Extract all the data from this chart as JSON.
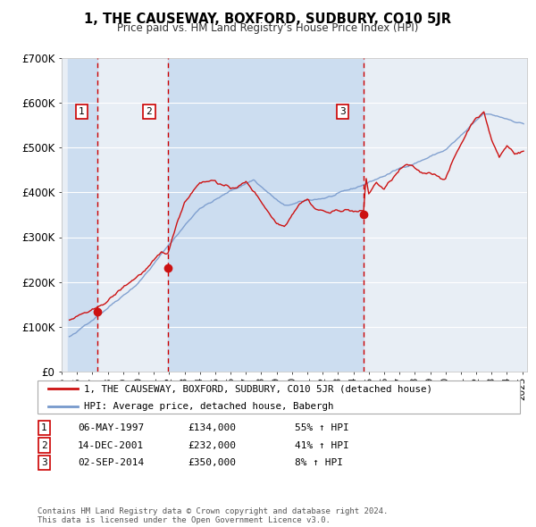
{
  "title": "1, THE CAUSEWAY, BOXFORD, SUDBURY, CO10 5JR",
  "subtitle": "Price paid vs. HM Land Registry’s House Price Index (HPI)",
  "legend_label_red": "1, THE CAUSEWAY, BOXFORD, SUDBURY, CO10 5JR (detached house)",
  "legend_label_blue": "HPI: Average price, detached house, Babergh",
  "transactions": [
    {
      "num": 1,
      "date": "06-MAY-1997",
      "price": 134000,
      "pct": "55%",
      "year": 1997.35
    },
    {
      "num": 2,
      "date": "14-DEC-2001",
      "price": 232000,
      "pct": "41%",
      "year": 2001.95
    },
    {
      "num": 3,
      "date": "02-SEP-2014",
      "price": 350000,
      "pct": "8%",
      "year": 2014.67
    }
  ],
  "ylim": [
    0,
    700000
  ],
  "xlim_start": 1995.4,
  "xlim_end": 2025.3,
  "yticks": [
    0,
    100000,
    200000,
    300000,
    400000,
    500000,
    600000,
    700000
  ],
  "ytick_labels": [
    "£0",
    "£100K",
    "£200K",
    "£300K",
    "£400K",
    "£500K",
    "£600K",
    "£700K"
  ],
  "xticks": [
    1995,
    1996,
    1997,
    1998,
    1999,
    2000,
    2001,
    2002,
    2003,
    2004,
    2005,
    2006,
    2007,
    2008,
    2009,
    2010,
    2011,
    2012,
    2013,
    2014,
    2015,
    2016,
    2017,
    2018,
    2019,
    2020,
    2021,
    2022,
    2023,
    2024,
    2025
  ],
  "background_color": "#ffffff",
  "plot_bg_color": "#e8eef5",
  "shade_color": "#ccddf0",
  "grid_color": "#ffffff",
  "red_color": "#cc1111",
  "blue_color": "#7799cc",
  "vline_color": "#cc0000",
  "footer_text": "Contains HM Land Registry data © Crown copyright and database right 2024.\nThis data is licensed under the Open Government Licence v3.0."
}
